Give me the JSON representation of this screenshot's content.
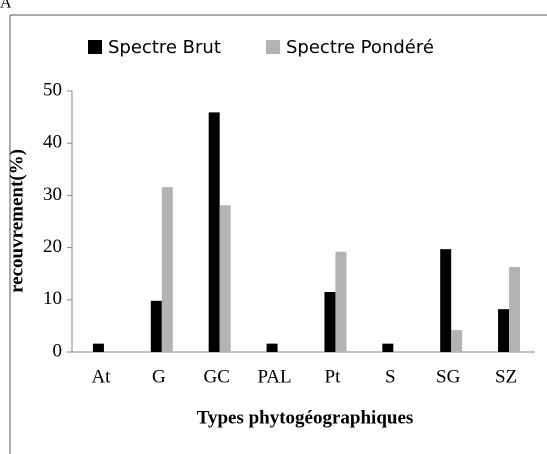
{
  "panel_label": "A",
  "chart_data": {
    "type": "bar",
    "xlabel": "Types phytogéographiques",
    "ylabel": "recouvrement(%)",
    "categories": [
      "At",
      "G",
      "GC",
      "PAL",
      "Pt",
      "S",
      "SG",
      "SZ"
    ],
    "series": [
      {
        "name": "Spectre Brut",
        "color": "#000000",
        "values": [
          1.6,
          9.8,
          45.9,
          1.6,
          11.5,
          1.6,
          19.7,
          8.2
        ]
      },
      {
        "name": "Spectre Pondéré",
        "color": "#b3b3b3",
        "values": [
          0,
          31.6,
          28.1,
          0,
          19.2,
          0,
          4.2,
          16.3
        ]
      }
    ],
    "ylim": [
      0,
      50
    ],
    "yticks": [
      0,
      10,
      20,
      30,
      40,
      50
    ],
    "grid": false,
    "legend": "top"
  }
}
